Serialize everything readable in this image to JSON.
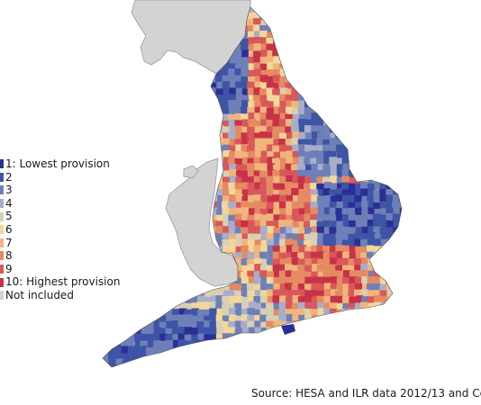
{
  "legend": {
    "items": [
      {
        "label": "1: Lowest provision",
        "color": "#2b2f95"
      },
      {
        "label": "2",
        "color": "#3e54a6"
      },
      {
        "label": "3",
        "color": "#6f7fb8"
      },
      {
        "label": "4",
        "color": "#a8aec9"
      },
      {
        "label": "5",
        "color": "#d9cfb2"
      },
      {
        "label": "6",
        "color": "#f3d79a"
      },
      {
        "label": "7",
        "color": "#f0b57c"
      },
      {
        "label": "8",
        "color": "#e58a63"
      },
      {
        "label": "9",
        "color": "#d9585a"
      },
      {
        "label": "10: Highest provision",
        "color": "#c83247"
      },
      {
        "label": "Not included",
        "color": "#d3d3d3"
      }
    ]
  },
  "source_note": "Source: HESA and ILR data 2012/13 and Cen",
  "colors": {
    "not_included_land": "#d3d3d3",
    "coastline": "#9a9a9a"
  }
}
